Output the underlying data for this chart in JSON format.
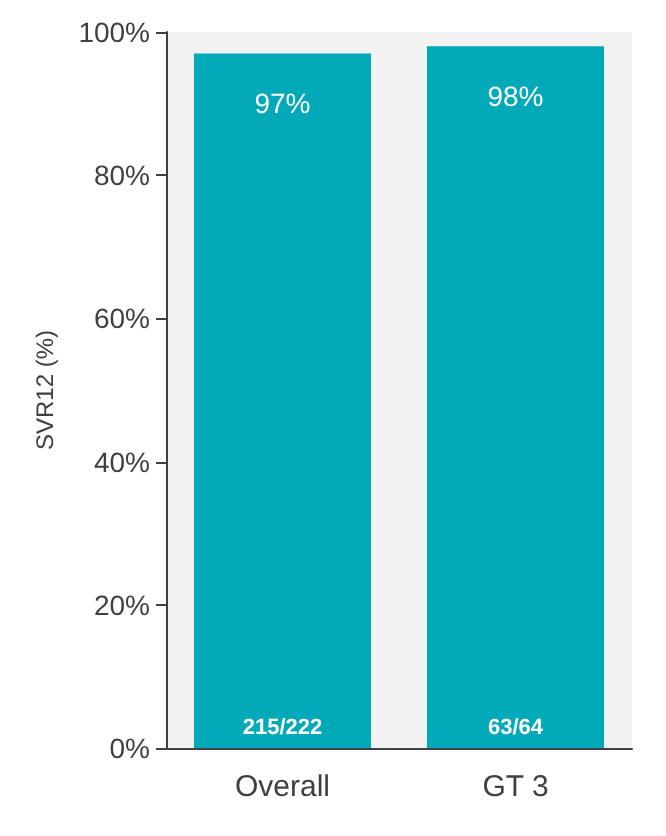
{
  "chart_data": {
    "type": "bar",
    "ylabel": "SVR12 (%)",
    "categories": [
      "Overall",
      "GT 3"
    ],
    "values": [
      97,
      98
    ],
    "color": "#02a9b8",
    "value_labels": [
      "97%",
      "98%"
    ],
    "annotations": [
      {
        "text": "215/222",
        "x": "Overall",
        "y": 0
      },
      {
        "text": "63/64",
        "x": "GT 3",
        "y": 0
      }
    ],
    "ylim": [
      0,
      100
    ],
    "yticks": [
      {
        "value": 0,
        "label": "0%"
      },
      {
        "value": 20,
        "label": "20%"
      },
      {
        "value": 40,
        "label": "40%"
      },
      {
        "value": 60,
        "label": "60%"
      },
      {
        "value": 80,
        "label": "80%"
      },
      {
        "value": 100,
        "label": "100%"
      }
    ],
    "grid": false
  }
}
